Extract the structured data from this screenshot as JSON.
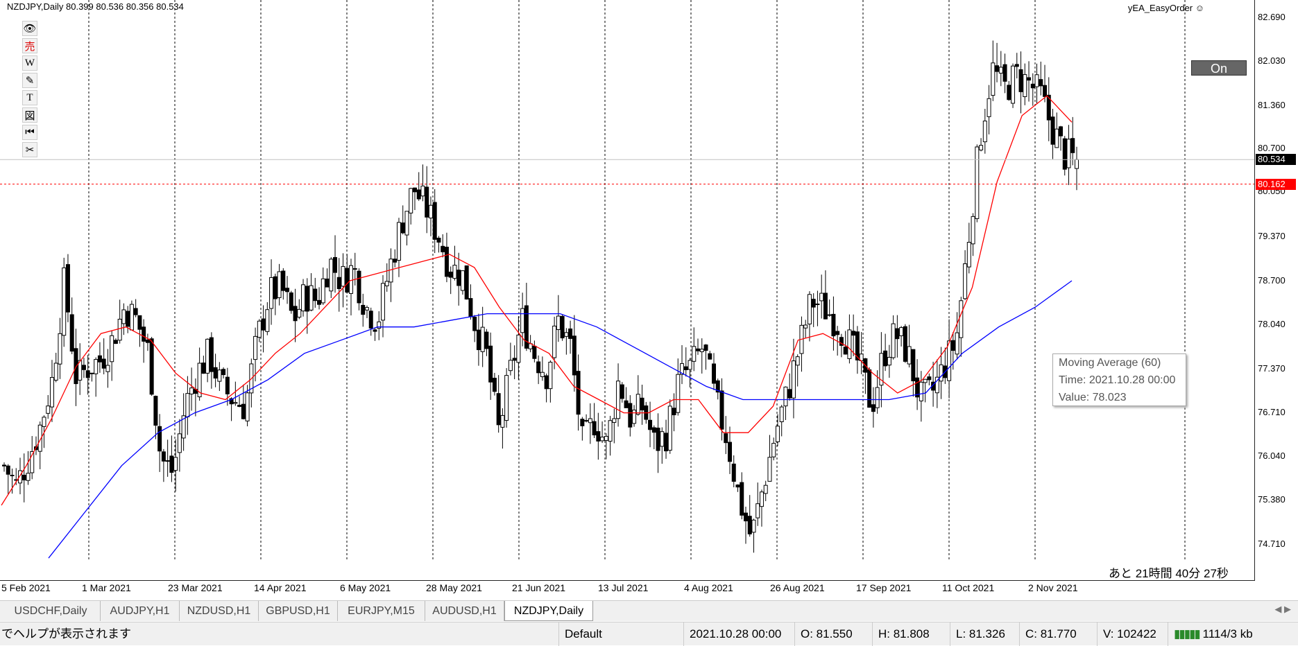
{
  "symbol_header": "NZDJPY,Daily  80.399 80.536 80.356 80.534",
  "ea_name": "yEA_EasyOrder ☺",
  "on_button": "On",
  "countdown": "あと 21時間  40分 27秒",
  "toolbar_icons": [
    "eye-icon",
    "sell-icon",
    "w-icon",
    "pencil-icon",
    "text-icon",
    "shape-icon",
    "rewind-icon",
    "scissors-icon"
  ],
  "toolbar_glyphs": [
    "👁",
    "売",
    "W",
    "✎",
    "T",
    "図",
    "⏮",
    "✂"
  ],
  "price_axis": {
    "ticks": [
      "82.690",
      "82.030",
      "81.360",
      "80.700",
      "80.050",
      "79.370",
      "78.700",
      "78.040",
      "77.370",
      "76.710",
      "76.040",
      "75.380",
      "74.710"
    ],
    "current_price": "80.534",
    "alert_price": "80.162"
  },
  "date_axis": [
    "5 Feb 2021",
    "1 Mar 2021",
    "23 Mar 2021",
    "14 Apr 2021",
    "6 May 2021",
    "28 May 2021",
    "21 Jun 2021",
    "13 Jul 2021",
    "4 Aug 2021",
    "26 Aug 2021",
    "17 Sep 2021",
    "11 Oct 2021",
    "2 Nov 2021"
  ],
  "tooltip": {
    "title": "Moving Average (60)",
    "time": "Time: 2021.10.28 00:00",
    "value": "Value: 78.023"
  },
  "tabs": [
    "USDCHF,Daily",
    "AUDJPY,H1",
    "NZDUSD,H1",
    "GBPUSD,H1",
    "EURJPY,M15",
    "AUDUSD,H1",
    "NZDJPY,Daily"
  ],
  "active_tab": "NZDJPY,Daily",
  "status": {
    "help": "でヘルプが表示されます",
    "profile": "Default",
    "time": "2021.10.28 00:00",
    "open": "O: 81.550",
    "high": "H: 81.808",
    "low": "L: 81.326",
    "close": "C: 81.770",
    "volume": "V: 102422",
    "traffic": "1114/3 kb"
  },
  "colors": {
    "ma_fast": "#ff0000",
    "ma_slow": "#0000ff",
    "candle_bull": "#ffffff",
    "candle_bear": "#000000",
    "alert_line": "#ff0000",
    "price_line": "#c0c0c0"
  },
  "chart_data": {
    "type": "candlestick",
    "symbol": "NZDJPY",
    "timeframe": "Daily",
    "ylim": [
      74.45,
      82.95
    ],
    "grid": "vertical dotted",
    "x_ticks": [
      "5 Feb 2021",
      "1 Mar 2021",
      "23 Mar 2021",
      "14 Apr 2021",
      "6 May 2021",
      "28 May 2021",
      "21 Jun 2021",
      "13 Jul 2021",
      "4 Aug 2021",
      "26 Aug 2021",
      "17 Sep 2021",
      "11 Oct 2021",
      "2 Nov 2021"
    ],
    "close_path": [
      75.9,
      75.6,
      76.0,
      76.5,
      77.2,
      78.7,
      77.2,
      77.4,
      77.5,
      77.8,
      78.3,
      78.1,
      77.6,
      76.0,
      75.8,
      76.8,
      77.3,
      77.6,
      77.1,
      76.9,
      76.8,
      77.8,
      78.5,
      78.6,
      78.1,
      78.5,
      78.4,
      79.0,
      78.7,
      78.9,
      78.3,
      78.1,
      78.9,
      79.6,
      80.1,
      79.8,
      79.4,
      78.9,
      78.8,
      78.1,
      77.6,
      76.4,
      77.3,
      78.1,
      77.6,
      77.3,
      78.1,
      77.7,
      76.2,
      76.6,
      76.2,
      77.2,
      76.6,
      76.8,
      76.2,
      76.4,
      77.2,
      77.4,
      77.7,
      76.9,
      76.3,
      75.4,
      74.8,
      75.6,
      76.4,
      77.0,
      77.7,
      78.4,
      78.3,
      78.1,
      77.8,
      77.4,
      76.8,
      77.6,
      77.9,
      77.6,
      76.9,
      77.0,
      77.4,
      77.8,
      79.3,
      80.9,
      81.9,
      81.6,
      81.8,
      81.7,
      81.5,
      81.0,
      80.6,
      80.53
    ],
    "ma_fast_approx": [
      75.3,
      75.9,
      76.6,
      77.4,
      77.9,
      78.0,
      77.8,
      77.3,
      77.0,
      76.9,
      77.2,
      77.6,
      77.9,
      78.3,
      78.7,
      78.8,
      78.9,
      79.0,
      79.1,
      78.9,
      78.3,
      77.8,
      77.6,
      77.1,
      76.9,
      76.7,
      76.7,
      76.9,
      76.9,
      76.4,
      76.4,
      76.8,
      77.8,
      77.9,
      77.7,
      77.3,
      77.0,
      77.2,
      77.7,
      78.6,
      80.2,
      81.2,
      81.5,
      81.1
    ],
    "ma_slow_approx": [
      74.5,
      75.2,
      75.9,
      76.4,
      76.7,
      76.9,
      77.2,
      77.6,
      77.8,
      78.0,
      78.0,
      78.1,
      78.2,
      78.2,
      78.2,
      78.0,
      77.7,
      77.4,
      77.1,
      76.9,
      76.9,
      76.9,
      76.9,
      76.9,
      77.0,
      77.6,
      78.0,
      78.3,
      78.7
    ]
  }
}
